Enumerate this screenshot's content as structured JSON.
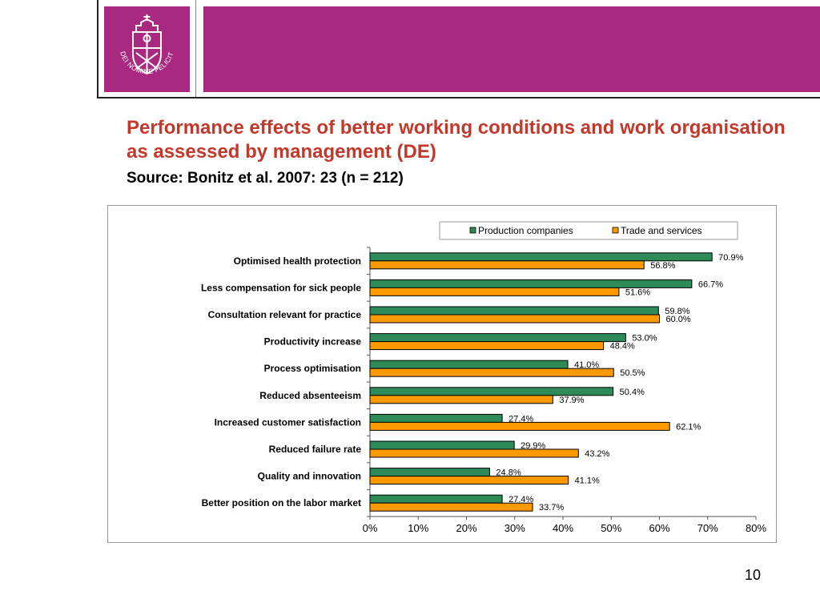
{
  "slide": {
    "title": "Performance effects of better working conditions and work organisation as assessed by management (DE)",
    "subtitle": "Source: Bonitz et al. 2007: 23 (n = 212)",
    "page_number": "10",
    "logo_text": "IN DEI NOMINE FELICITER",
    "colors": {
      "brand": "#a8297f",
      "title": "#c0392b"
    }
  },
  "chart_data": {
    "type": "bar",
    "orientation": "horizontal",
    "categories": [
      "Optimised health protection",
      "Less compensation for sick people",
      "Consultation relevant for practice",
      "Productivity increase",
      "Process optimisation",
      "Reduced absenteeism",
      "Increased customer satisfaction",
      "Reduced failure rate",
      "Quality and innovation",
      "Better position on the labor market"
    ],
    "series": [
      {
        "name": "Production companies",
        "color": "#2e8b57",
        "values": [
          70.9,
          66.7,
          59.8,
          53.0,
          41.0,
          50.4,
          27.4,
          29.9,
          24.8,
          27.4
        ],
        "labels": [
          "70.9%",
          "66.7%",
          "59.8%",
          "53.0%",
          "41.0%",
          "50.4%",
          "27.4%",
          "29.9%",
          "24.8%",
          "27.4%"
        ]
      },
      {
        "name": "Trade and services",
        "color": "#ff9900",
        "values": [
          56.8,
          51.6,
          60.0,
          48.4,
          50.5,
          37.9,
          62.1,
          43.2,
          41.1,
          33.7
        ],
        "labels": [
          "56.8%",
          "51.6%",
          "60.0%",
          "48.4%",
          "50.5%",
          "37.9%",
          "62.1%",
          "43.2%",
          "41.1%",
          "33.7%"
        ]
      }
    ],
    "xlim": [
      0,
      80
    ],
    "xticks": [
      "0%",
      "10%",
      "20%",
      "30%",
      "40%",
      "50%",
      "60%",
      "70%",
      "80%"
    ],
    "legend_position": "top-right",
    "grid": false
  }
}
